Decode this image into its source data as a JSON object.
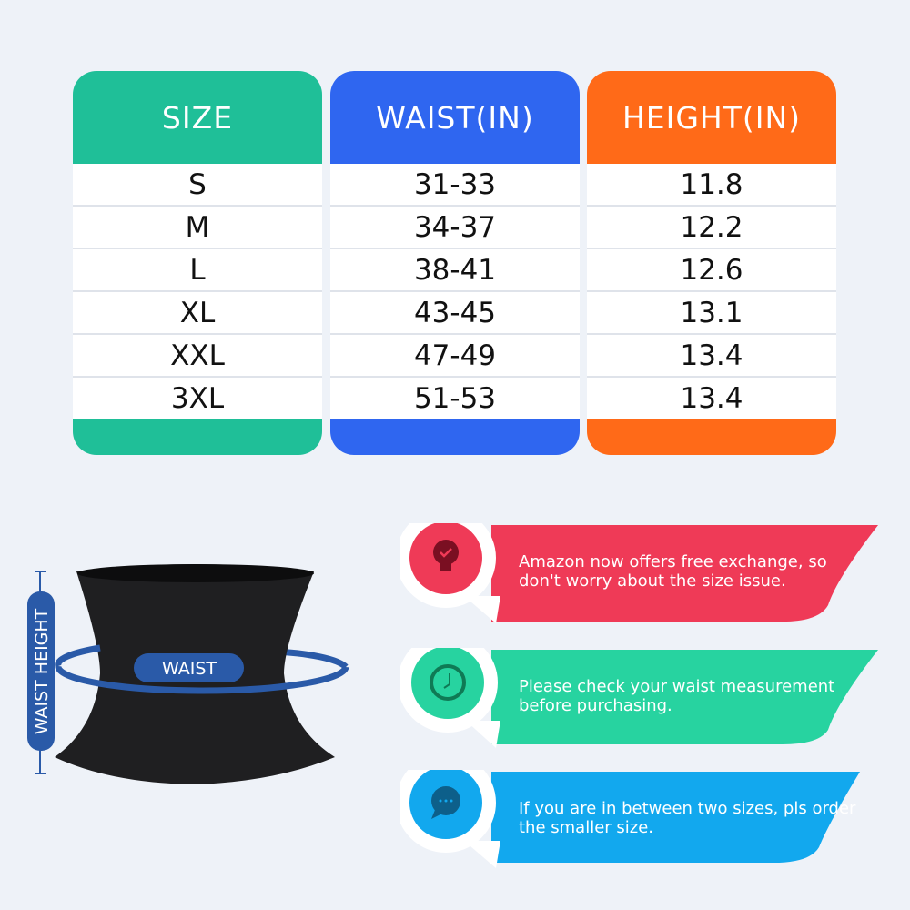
{
  "table": {
    "columns": [
      {
        "header": "SIZE",
        "color": "#1fbf98",
        "values": [
          "S",
          "M",
          "L",
          "XL",
          "XXL",
          "3XL"
        ]
      },
      {
        "header": "WAIST(IN)",
        "color": "#2f66f0",
        "values": [
          "31-33",
          "34-37",
          "38-41",
          "43-45",
          "47-49",
          "51-53"
        ]
      },
      {
        "header": "HEIGHT(IN)",
        "color": "#ff6a18",
        "values": [
          "11.8",
          "12.2",
          "12.6",
          "13.1",
          "13.4",
          "13.4"
        ]
      }
    ]
  },
  "diagram": {
    "waist_height_label": "WAIST HEIGHT",
    "waist_label": "WAIST",
    "accent": "#2a5aa8"
  },
  "tips": [
    {
      "icon": "lightbulb-check-icon",
      "color": "#ef3a57",
      "text": "Amazon now offers free exchange, so don't worry about the size issue."
    },
    {
      "icon": "clock-icon",
      "color": "#27d3a0",
      "text": "Please check your waist measurement before purchasing."
    },
    {
      "icon": "chat-bubble-icon",
      "color": "#12a8ee",
      "text": "If you are in between two sizes, pls order the smaller size."
    }
  ]
}
